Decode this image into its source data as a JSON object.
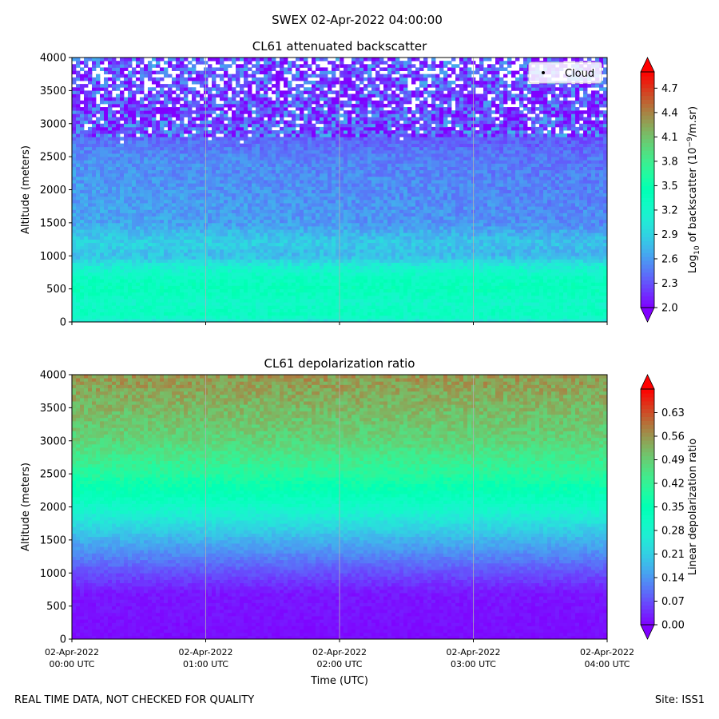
{
  "suptitle": "SWEX 02-Apr-2022 04:00:00",
  "footer": {
    "left": "REAL TIME DATA, NOT CHECKED FOR QUALITY",
    "right": "Site: ISS1"
  },
  "chart_data": [
    {
      "type": "heatmap",
      "title": "CL61 attenuated backscatter",
      "ylabel": "Altitude (meters)",
      "xlabel": "",
      "ylim": [
        0,
        4000
      ],
      "yticks": [
        0,
        500,
        1000,
        1500,
        2000,
        2500,
        3000,
        3500,
        4000
      ],
      "xlim_hours": [
        0,
        4
      ],
      "xticks_hours": [
        0,
        1,
        2,
        3,
        4
      ],
      "xtick_labels": [],
      "grid": "vertical lines at x ticks",
      "colormap": "rainbow",
      "colorbar": {
        "label_prefix": "Log",
        "label_sub": "10",
        "label_mid": " of backscatter (10",
        "label_sup": "−9",
        "label_suffix": "/m.sr)",
        "vmin": 2.0,
        "vmax": 4.9,
        "ticks": [
          "2.0",
          "2.3",
          "2.6",
          "2.9",
          "3.2",
          "3.5",
          "3.8",
          "4.1",
          "4.4",
          "4.7"
        ],
        "extend": "both"
      },
      "legend": {
        "location": "upper right",
        "entries": [
          "Cloud"
        ]
      },
      "profile": [
        {
          "altitude": 0,
          "value": 3.0
        },
        {
          "altitude": 100,
          "value": 3.35
        },
        {
          "altitude": 300,
          "value": 3.25
        },
        {
          "altitude": 500,
          "value": 3.4
        },
        {
          "altitude": 700,
          "value": 3.3
        },
        {
          "altitude": 850,
          "value": 3.1
        },
        {
          "altitude": 1000,
          "value": 2.75
        },
        {
          "altitude": 1200,
          "value": 2.85
        },
        {
          "altitude": 1500,
          "value": 2.6
        },
        {
          "altitude": 2000,
          "value": 2.55
        },
        {
          "altitude": 2500,
          "value": 2.5
        },
        {
          "altitude": 2800,
          "value": 2.35
        },
        {
          "altitude": 3200,
          "value": 2.25
        },
        {
          "altitude": 4000,
          "value": 2.3
        }
      ]
    },
    {
      "type": "heatmap",
      "title": "CL61 depolarization ratio",
      "ylabel": "Altitude (meters)",
      "xlabel": "Time (UTC)",
      "ylim": [
        0,
        4000
      ],
      "yticks": [
        0,
        500,
        1000,
        1500,
        2000,
        2500,
        3000,
        3500,
        4000
      ],
      "xlim_hours": [
        0,
        4
      ],
      "xticks_hours": [
        0,
        1,
        2,
        3,
        4
      ],
      "xtick_labels": [
        [
          "02-Apr-2022",
          "00:00 UTC"
        ],
        [
          "02-Apr-2022",
          "01:00 UTC"
        ],
        [
          "02-Apr-2022",
          "02:00 UTC"
        ],
        [
          "02-Apr-2022",
          "03:00 UTC"
        ],
        [
          "02-Apr-2022",
          "04:00 UTC"
        ]
      ],
      "grid": "vertical lines at x ticks",
      "colormap": "rainbow",
      "colorbar": {
        "label": "Linear depolarization ratio",
        "vmin": 0.0,
        "vmax": 0.7,
        "ticks": [
          "0.00",
          "0.07",
          "0.14",
          "0.21",
          "0.28",
          "0.35",
          "0.42",
          "0.49",
          "0.56",
          "0.63"
        ],
        "extend": "both"
      },
      "profile": [
        {
          "altitude": 0,
          "value": 0.01
        },
        {
          "altitude": 700,
          "value": 0.02
        },
        {
          "altitude": 1000,
          "value": 0.07
        },
        {
          "altitude": 1500,
          "value": 0.17
        },
        {
          "altitude": 2000,
          "value": 0.3
        },
        {
          "altitude": 2500,
          "value": 0.4
        },
        {
          "altitude": 3000,
          "value": 0.48
        },
        {
          "altitude": 3500,
          "value": 0.52
        },
        {
          "altitude": 4000,
          "value": 0.56
        }
      ]
    }
  ]
}
